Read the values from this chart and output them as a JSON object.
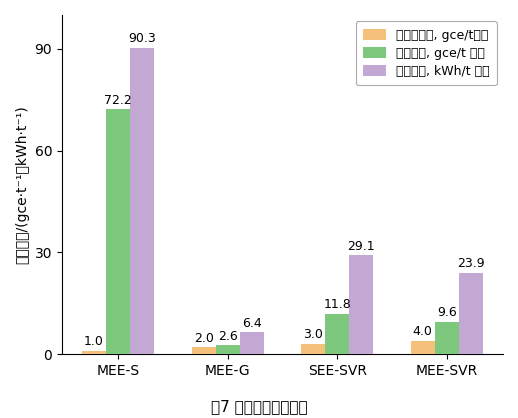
{
  "categories": [
    "MEE-S",
    "MEE-G",
    "SEE-SVR",
    "MEE-SVR"
  ],
  "series": [
    {
      "name": "热値当量法, gce/t凝水",
      "values": [
        1.0,
        2.0,
        3.0,
        4.0
      ],
      "color": "#F5C07A"
    },
    {
      "name": "等价値法, gce/t 凝水",
      "values": [
        72.2,
        2.6,
        11.8,
        9.6
      ],
      "color": "#7DC87D"
    },
    {
      "name": "等效电法, kWh/t 凝水",
      "values": [
        90.3,
        6.4,
        29.1,
        23.9
      ],
      "color": "#C4A8D4"
    }
  ],
  "ylabel": "单位能耗/(gce·t⁻¹或kWh·t⁻¹)",
  "ylim": [
    0,
    100
  ],
  "yticks": [
    0,
    30,
    60,
    90
  ],
  "caption": "图7 不同系统单位能耗",
  "bar_width": 0.22,
  "background_color": "#FFFFFF",
  "legend_fontsize": 9,
  "tick_fontsize": 10,
  "label_fontsize": 9
}
